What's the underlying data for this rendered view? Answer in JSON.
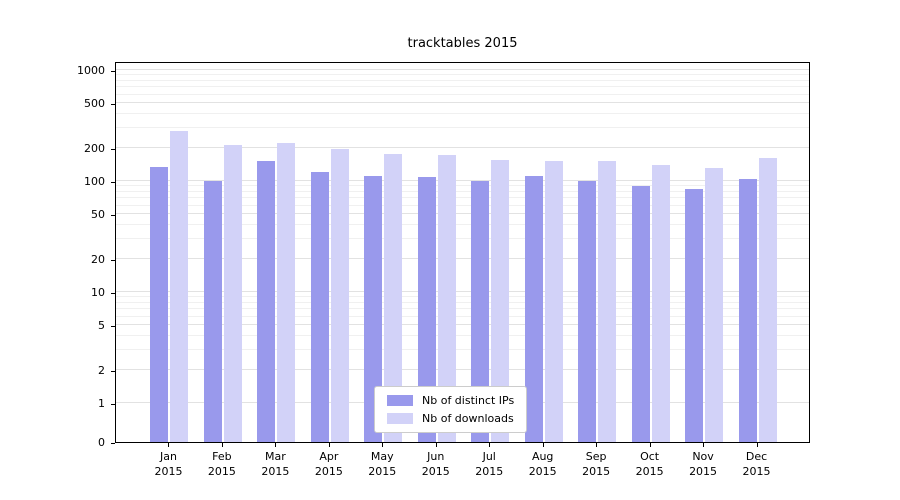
{
  "chart_data": {
    "type": "bar",
    "title": "tracktables 2015",
    "categories": [
      "Jan",
      "Feb",
      "Mar",
      "Apr",
      "May",
      "Jun",
      "Jul",
      "Aug",
      "Sep",
      "Oct",
      "Nov",
      "Dec"
    ],
    "year_label": "2015",
    "series": [
      {
        "name": "Nb of distinct IPs",
        "color": "#9999ec",
        "values": [
          135,
          100,
          150,
          120,
          112,
          108,
          100,
          110,
          100,
          90,
          85,
          105
        ]
      },
      {
        "name": "Nb of downloads",
        "color": "#d2d2f8",
        "values": [
          280,
          210,
          220,
          195,
          175,
          170,
          155,
          150,
          152,
          138,
          130,
          160
        ]
      }
    ],
    "yticks": [
      0,
      1,
      2,
      5,
      10,
      20,
      50,
      100,
      200,
      500,
      1000
    ],
    "yscale": "symlog",
    "ylim": [
      0,
      1300
    ],
    "xlabel": "",
    "ylabel": "",
    "grid": true,
    "legend_position": "lower center"
  }
}
